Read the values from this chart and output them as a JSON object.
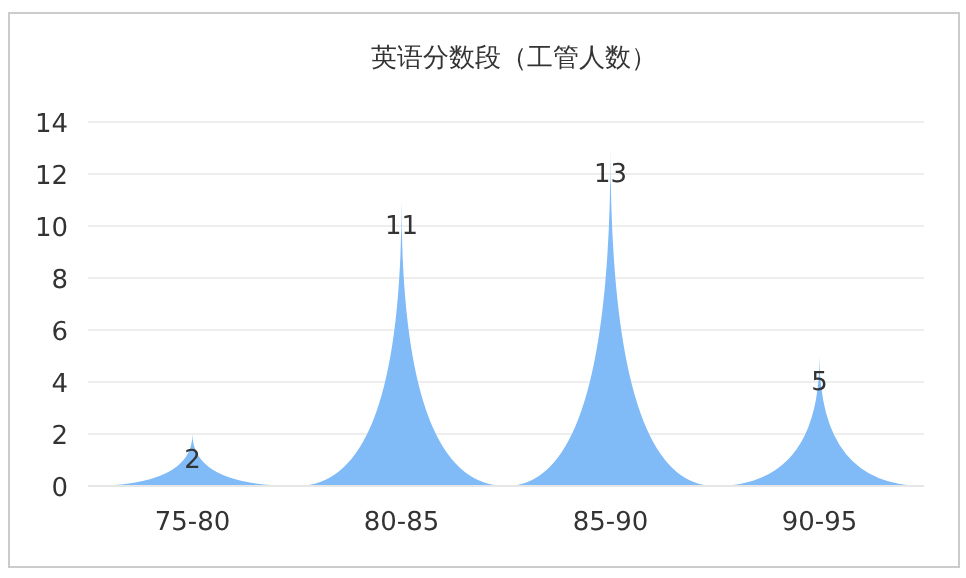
{
  "chart_data": {
    "type": "bar",
    "title": "英语分数段（工管人数）",
    "categories": [
      "75-80",
      "80-85",
      "85-90",
      "90-95"
    ],
    "values": [
      2,
      11,
      13,
      5
    ],
    "color": "#80bbf7",
    "ylim": [
      0,
      14
    ],
    "yticks": [
      0,
      2,
      4,
      6,
      8,
      10,
      12,
      14
    ],
    "grid": "y",
    "data_labels": true
  }
}
